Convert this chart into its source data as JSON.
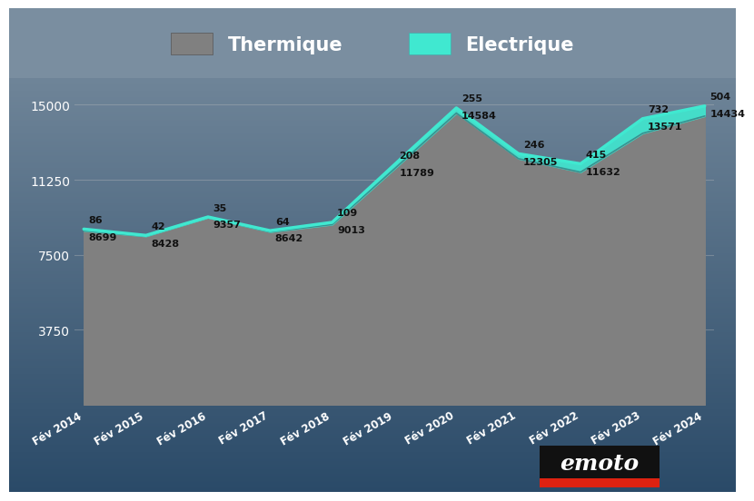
{
  "years": [
    "Fév 2014",
    "Fév 2015",
    "Fév 2016",
    "Fév 2017",
    "Fév 2018",
    "Fév 2019",
    "Fév 2020",
    "Fév 2021",
    "Fév 2022",
    "Fév 2023",
    "Fév 2024"
  ],
  "thermique": [
    8699,
    8428,
    9357,
    8642,
    9013,
    11789,
    14584,
    12305,
    11632,
    13571,
    14434
  ],
  "electrique": [
    86,
    42,
    35,
    64,
    109,
    208,
    255,
    246,
    415,
    732,
    504
  ],
  "yticks": [
    3750,
    7500,
    11250,
    15000
  ],
  "ylim_min": 0,
  "ylim_max": 16200,
  "bg_top": "#7a8ea0",
  "bg_bottom": "#2a4a68",
  "legend_bg": "#8a9aaa",
  "thermique_fill": "#808080",
  "electrique_fill": "#40e8d0",
  "electrique_line": "#40e8d0",
  "thermique_outline": "#3a9090",
  "text_color_white": "#ffffff",
  "label_color": "#111111",
  "grid_color": "#c0c0c0",
  "legend_thermique": "Thermique",
  "legend_electrique": "Electrique",
  "logo_text": "emoto",
  "logo_bg_black": "#111111",
  "logo_bg_red": "#dd2211",
  "logo_font_size": 18
}
